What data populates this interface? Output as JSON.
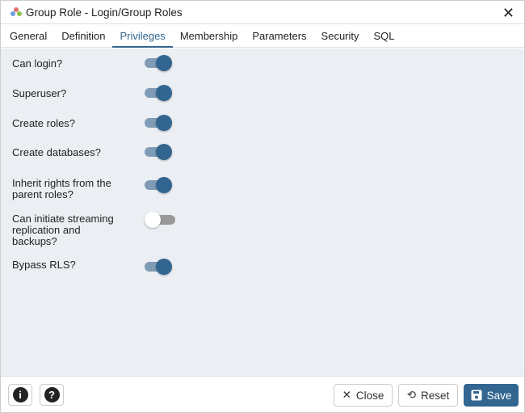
{
  "window": {
    "title": "Group Role - Login/Group Roles",
    "close": "✕"
  },
  "tabs": [
    {
      "label": "General"
    },
    {
      "label": "Definition"
    },
    {
      "label": "Privileges"
    },
    {
      "label": "Membership"
    },
    {
      "label": "Parameters"
    },
    {
      "label": "Security"
    },
    {
      "label": "SQL"
    }
  ],
  "active_tab": "Privileges",
  "privileges": [
    {
      "label": "Can login?",
      "value": true
    },
    {
      "label": "Superuser?",
      "value": true
    },
    {
      "label": "Create roles?",
      "value": true
    },
    {
      "label": "Create databases?",
      "value": true
    },
    {
      "label": "Inherit rights from the parent roles?",
      "value": true
    },
    {
      "label": "Can initiate streaming replication and backups?",
      "value": false
    },
    {
      "label": "Bypass RLS?",
      "value": true
    }
  ],
  "footer": {
    "info": "i",
    "help": "?",
    "close_label": "Close",
    "reset_label": "Reset",
    "save_label": "Save"
  },
  "colors": {
    "accent": "#326690"
  }
}
